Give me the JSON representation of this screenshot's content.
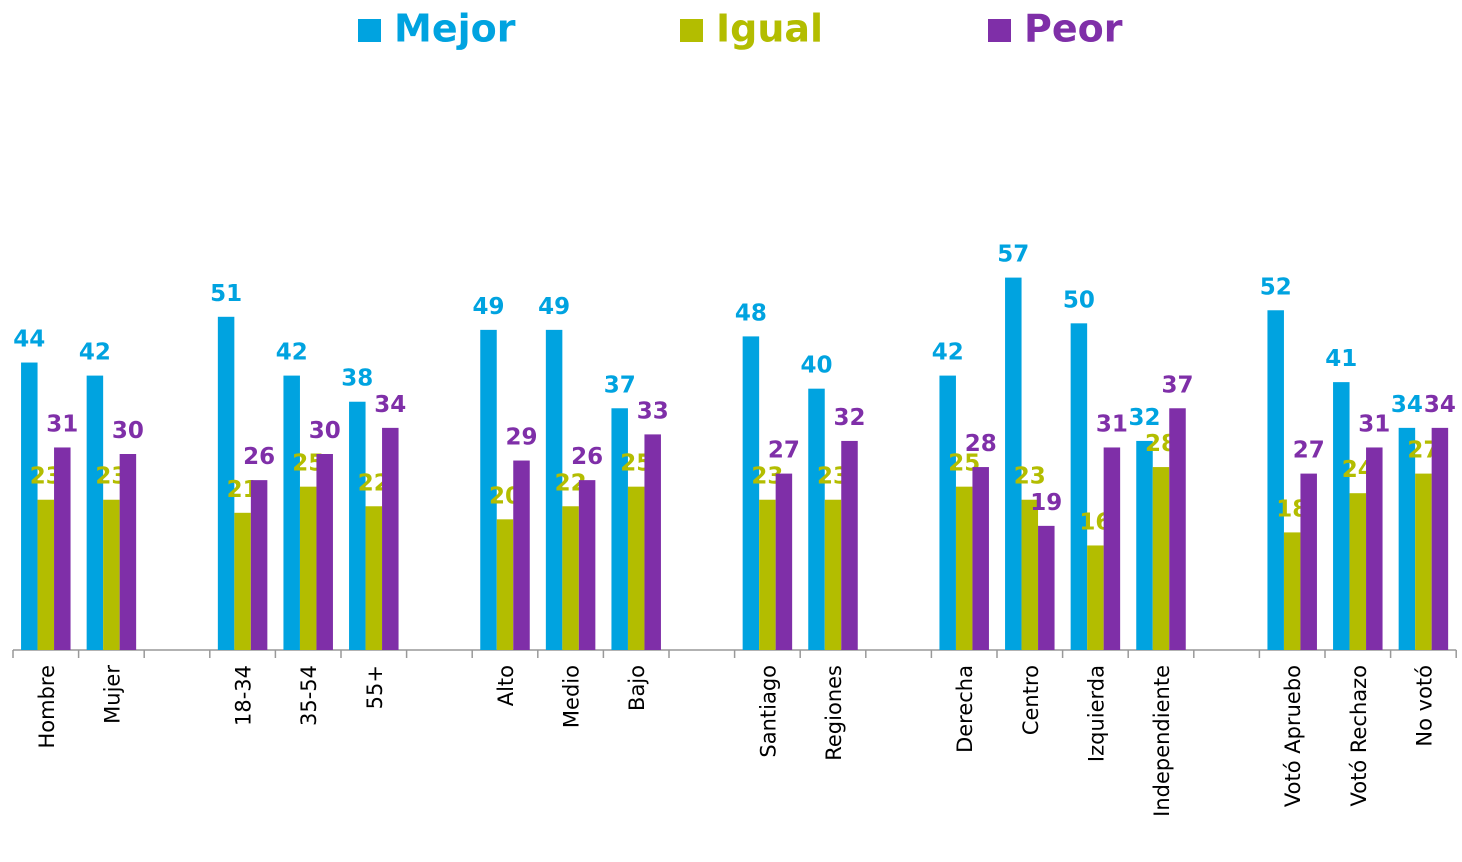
{
  "chart_data": {
    "type": "bar",
    "categories": [
      "Hombre",
      "Mujer",
      null,
      "18-34",
      "35-54",
      "55+",
      null,
      "Alto",
      "Medio",
      "Bajo",
      null,
      "Santiago",
      "Regiones",
      null,
      "Derecha",
      "Centro",
      "Izquierda",
      "Independiente",
      null,
      "Votó Apruebo",
      "Votó Rechazo",
      "No votó"
    ],
    "series": [
      {
        "name": "Mejor",
        "color": "#00a3e0",
        "values": [
          44,
          42,
          null,
          51,
          42,
          38,
          null,
          49,
          49,
          37,
          null,
          48,
          40,
          null,
          42,
          57,
          50,
          32,
          null,
          52,
          41,
          34
        ]
      },
      {
        "name": "Igual",
        "color": "#b3bd00",
        "values": [
          23,
          23,
          null,
          21,
          25,
          22,
          null,
          20,
          22,
          25,
          null,
          23,
          23,
          null,
          25,
          23,
          16,
          28,
          null,
          18,
          24,
          27
        ]
      },
      {
        "name": "Peor",
        "color": "#7f2fa8",
        "values": [
          31,
          30,
          null,
          26,
          30,
          34,
          null,
          29,
          26,
          33,
          null,
          27,
          32,
          null,
          28,
          19,
          31,
          37,
          null,
          27,
          31,
          34
        ]
      }
    ],
    "ylim": [
      0,
      60
    ],
    "legend": "top",
    "grid": false
  }
}
